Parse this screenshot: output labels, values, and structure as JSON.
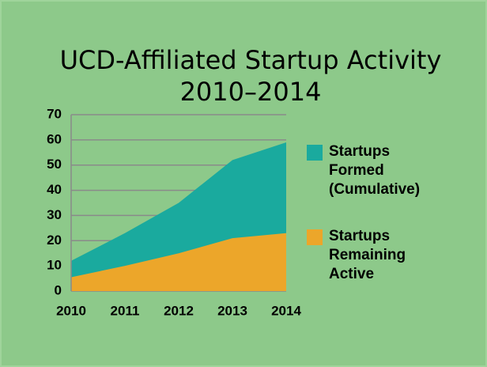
{
  "chart_data": {
    "type": "area",
    "title": [
      "UCD-Affiliated Startup Activity",
      "2010–2014"
    ],
    "categories": [
      "2010",
      "2011",
      "2012",
      "2013",
      "2014"
    ],
    "series": [
      {
        "name": "Startups Formed (Cumulative)",
        "color": "#1aaa9e",
        "values": [
          12,
          23,
          35,
          52,
          59
        ]
      },
      {
        "name": "Startups Remaining Active",
        "color": "#eca62a",
        "values": [
          5.5,
          10,
          15,
          21,
          23
        ]
      }
    ],
    "ylim": [
      0,
      70
    ],
    "yticks": [
      0,
      10,
      20,
      30,
      40,
      50,
      60,
      70
    ],
    "grid": true,
    "legend": "right"
  }
}
